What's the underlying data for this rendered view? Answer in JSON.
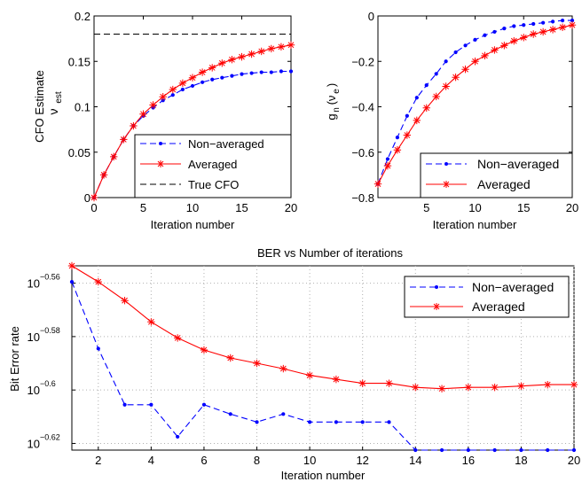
{
  "colors": {
    "non_averaged": "#0000ff",
    "averaged": "#ff0000",
    "true_cfo": "#000000",
    "grid": "#bdbdbd"
  },
  "chart_data": [
    {
      "id": "cfo",
      "type": "line",
      "title": "",
      "xlabel": "Iteration number",
      "ylabel": "CFO Estimate",
      "ylabel_sym": "ν",
      "ylabel_sub": "est",
      "xlim": [
        0,
        20
      ],
      "ylim": [
        0,
        0.2
      ],
      "grid": false,
      "xticks": [
        0,
        5,
        10,
        15,
        20
      ],
      "xtick_labels": [
        "0",
        "5",
        "10",
        "15",
        "20"
      ],
      "yticks": [
        0,
        0.05,
        0.1,
        0.15,
        0.2
      ],
      "ytick_labels": [
        "0",
        "0.05",
        "0.1",
        "0.15",
        "0.2"
      ],
      "legend_position": "bottom-right",
      "x": [
        0,
        1,
        2,
        3,
        4,
        5,
        6,
        7,
        8,
        9,
        10,
        11,
        12,
        13,
        14,
        15,
        16,
        17,
        18,
        19,
        20
      ],
      "series": [
        {
          "name": "Non−averaged",
          "style": "dash-dot",
          "color": "#0000ff",
          "values": [
            0,
            0.025,
            0.045,
            0.064,
            0.079,
            0.09,
            0.099,
            0.107,
            0.113,
            0.119,
            0.123,
            0.127,
            0.13,
            0.132,
            0.134,
            0.136,
            0.137,
            0.138,
            0.138,
            0.139,
            0.139
          ]
        },
        {
          "name": "Averaged",
          "style": "solid-star",
          "color": "#ff0000",
          "values": [
            0,
            0.025,
            0.045,
            0.064,
            0.079,
            0.092,
            0.102,
            0.111,
            0.119,
            0.126,
            0.132,
            0.138,
            0.143,
            0.148,
            0.152,
            0.155,
            0.158,
            0.161,
            0.164,
            0.166,
            0.168
          ]
        },
        {
          "name": "True CFO",
          "style": "dash",
          "color": "#000000",
          "values": [
            0.18,
            0.18,
            0.18,
            0.18,
            0.18,
            0.18,
            0.18,
            0.18,
            0.18,
            0.18,
            0.18,
            0.18,
            0.18,
            0.18,
            0.18,
            0.18,
            0.18,
            0.18,
            0.18,
            0.18,
            0.18
          ]
        }
      ]
    },
    {
      "id": "g",
      "type": "line",
      "title": "",
      "xlabel": "Iteration number",
      "ylabel_main": "g",
      "ylabel_sub1": "n",
      "ylabel_paren": "(ν",
      "ylabel_sub2": "e",
      "ylabel_close": ")",
      "xlim": [
        0,
        20
      ],
      "ylim": [
        -0.8,
        0
      ],
      "grid": false,
      "xticks": [
        5,
        10,
        15,
        20
      ],
      "xtick_labels": [
        "5",
        "10",
        "15",
        "20"
      ],
      "yticks": [
        -0.8,
        -0.6,
        -0.4,
        -0.2,
        0
      ],
      "ytick_labels": [
        "−0.8",
        "−0.6",
        "−0.4",
        "−0.2",
        "0"
      ],
      "legend_position": "bottom-right",
      "x": [
        0,
        1,
        2,
        3,
        4,
        5,
        6,
        7,
        8,
        9,
        10,
        11,
        12,
        13,
        14,
        15,
        16,
        17,
        18,
        19,
        20
      ],
      "series": [
        {
          "name": "Non−averaged",
          "style": "dash-dot",
          "color": "#0000ff",
          "values": [
            -0.74,
            -0.63,
            -0.535,
            -0.44,
            -0.36,
            -0.305,
            -0.255,
            -0.2,
            -0.16,
            -0.13,
            -0.105,
            -0.085,
            -0.07,
            -0.055,
            -0.045,
            -0.04,
            -0.035,
            -0.03,
            -0.025,
            -0.02,
            -0.02
          ]
        },
        {
          "name": "Averaged",
          "style": "solid-star",
          "color": "#ff0000",
          "values": [
            -0.74,
            -0.66,
            -0.59,
            -0.525,
            -0.46,
            -0.405,
            -0.355,
            -0.31,
            -0.27,
            -0.235,
            -0.2,
            -0.175,
            -0.15,
            -0.13,
            -0.11,
            -0.095,
            -0.08,
            -0.07,
            -0.06,
            -0.05,
            -0.04
          ]
        }
      ]
    },
    {
      "id": "ber",
      "type": "line",
      "title": "BER vs Number of iterations",
      "xlabel": "Iteration number",
      "ylabel": "Bit Error rate",
      "scale_y": "log",
      "xlim": [
        1,
        20
      ],
      "ylim_exponent": [
        -0.6225,
        -0.5535
      ],
      "grid": true,
      "xticks": [
        2,
        4,
        6,
        8,
        10,
        12,
        14,
        16,
        18,
        20
      ],
      "xtick_labels": [
        "2",
        "4",
        "6",
        "8",
        "10",
        "12",
        "14",
        "16",
        "18",
        "20"
      ],
      "ytick_exponents": [
        -0.62,
        -0.6,
        -0.58,
        -0.56
      ],
      "ytick_base": "10",
      "ytick_exp_labels": [
        "−0.62",
        "−0.6",
        "−0.58",
        "−0.56"
      ],
      "legend_position": "top-right",
      "x": [
        1,
        2,
        3,
        4,
        5,
        6,
        7,
        8,
        9,
        10,
        11,
        12,
        13,
        14,
        15,
        16,
        17,
        18,
        19,
        20
      ],
      "series": [
        {
          "name": "Non−averaged",
          "style": "dash-dot",
          "color": "#0000ff",
          "y_exponent": [
            -0.5595,
            -0.5845,
            -0.6055,
            -0.6055,
            -0.6175,
            -0.6055,
            -0.609,
            -0.612,
            -0.609,
            -0.612,
            -0.612,
            -0.612,
            -0.612,
            -0.6225,
            -0.6225,
            -0.6225,
            -0.6225,
            -0.6225,
            -0.6225,
            -0.6225
          ]
        },
        {
          "name": "Averaged",
          "style": "solid-star",
          "color": "#ff0000",
          "y_exponent": [
            -0.5535,
            -0.5595,
            -0.5665,
            -0.5745,
            -0.5805,
            -0.585,
            -0.588,
            -0.59,
            -0.592,
            -0.5945,
            -0.596,
            -0.5975,
            -0.5975,
            -0.599,
            -0.5995,
            -0.599,
            -0.599,
            -0.5985,
            -0.598,
            -0.598
          ]
        }
      ]
    }
  ]
}
